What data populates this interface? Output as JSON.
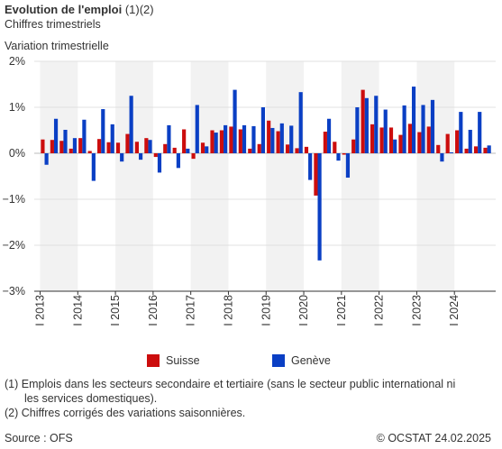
{
  "header": {
    "title_bold": "Evolution de l'emploi",
    "title_suffix": " (1)(2)",
    "subtitle": "Chiffres trimestriels",
    "ylabel": "Variation trimestrielle"
  },
  "legend": {
    "suisse": "Suisse",
    "geneve": "Genève"
  },
  "notes": {
    "n1_line1": "(1) Emplois dans les secteurs secondaire et tertiaire (sans le secteur public international ni",
    "n1_line2": "les services domestiques).",
    "n2": "(2) Chiffres corrigés des variations saisonnières."
  },
  "footer": {
    "source": "Source : OFS",
    "copyright": "© OCSTAT 24.02.2025"
  },
  "colors": {
    "suisse": "#cc0d0d",
    "geneve": "#0a3fc4",
    "grid": "#e0e0e0",
    "band": "#f2f2f2",
    "axis": "#333333"
  },
  "chart_data": {
    "type": "bar",
    "yunit": "%",
    "ylim": [
      -3,
      2
    ],
    "yticks": [
      2,
      1,
      0,
      -1,
      -2,
      -3
    ],
    "ytick_labels": [
      "2%",
      "1%",
      "0%",
      "−1%",
      "−2%",
      "−3%"
    ],
    "year_labels": [
      "I 2013",
      "I 2014",
      "I 2015",
      "I 2016",
      "I 2017",
      "I 2018",
      "I 2019",
      "I 2020",
      "I 2021",
      "I 2022",
      "I 2023",
      "I 2024"
    ],
    "shaded_years": [
      0,
      2,
      4,
      6,
      8,
      10
    ],
    "categories": [
      "2013 T1",
      "2013 T2",
      "2013 T3",
      "2013 T4",
      "2014 T1",
      "2014 T2",
      "2014 T3",
      "2014 T4",
      "2015 T1",
      "2015 T2",
      "2015 T3",
      "2015 T4",
      "2016 T1",
      "2016 T2",
      "2016 T3",
      "2016 T4",
      "2017 T1",
      "2017 T2",
      "2017 T3",
      "2017 T4",
      "2018 T1",
      "2018 T2",
      "2018 T3",
      "2018 T4",
      "2019 T1",
      "2019 T2",
      "2019 T3",
      "2019 T4",
      "2020 T1",
      "2020 T2",
      "2020 T3",
      "2020 T4",
      "2021 T1",
      "2021 T2",
      "2021 T3",
      "2021 T4",
      "2022 T1",
      "2022 T2",
      "2022 T3",
      "2022 T4",
      "2023 T1",
      "2023 T2",
      "2023 T3",
      "2023 T4",
      "2024 T1",
      "2024 T2",
      "2024 T3",
      "2024 T4"
    ],
    "series": [
      {
        "name": "Suisse",
        "values": [
          0.3,
          0.29,
          0.27,
          0.1,
          0.33,
          0.05,
          0.31,
          0.24,
          0.23,
          0.42,
          0.25,
          0.33,
          -0.08,
          0.2,
          0.12,
          0.52,
          -0.12,
          0.23,
          0.5,
          0.5,
          0.58,
          0.52,
          0.1,
          0.2,
          0.71,
          0.48,
          0.19,
          0.11,
          0.14,
          -0.92,
          0.47,
          0.25,
          -0.03,
          0.3,
          1.38,
          0.63,
          0.56,
          0.56,
          0.4,
          0.64,
          0.46,
          0.58,
          0.18,
          0.42,
          0.5,
          0.1,
          0.15,
          0.12
        ]
      },
      {
        "name": "Genève",
        "values": [
          -0.25,
          0.75,
          0.51,
          0.33,
          0.73,
          -0.6,
          0.96,
          0.63,
          -0.18,
          1.25,
          -0.14,
          0.29,
          -0.42,
          0.61,
          -0.32,
          0.1,
          1.05,
          0.15,
          0.45,
          0.61,
          1.38,
          0.61,
          0.59,
          1.0,
          0.55,
          0.65,
          0.6,
          1.33,
          -0.58,
          -2.33,
          0.75,
          -0.16,
          -0.53,
          1.0,
          1.2,
          1.25,
          0.95,
          0.3,
          1.04,
          1.45,
          1.05,
          1.16,
          -0.18,
          0.02,
          0.9,
          0.51,
          0.9,
          0.17
        ]
      }
    ]
  }
}
